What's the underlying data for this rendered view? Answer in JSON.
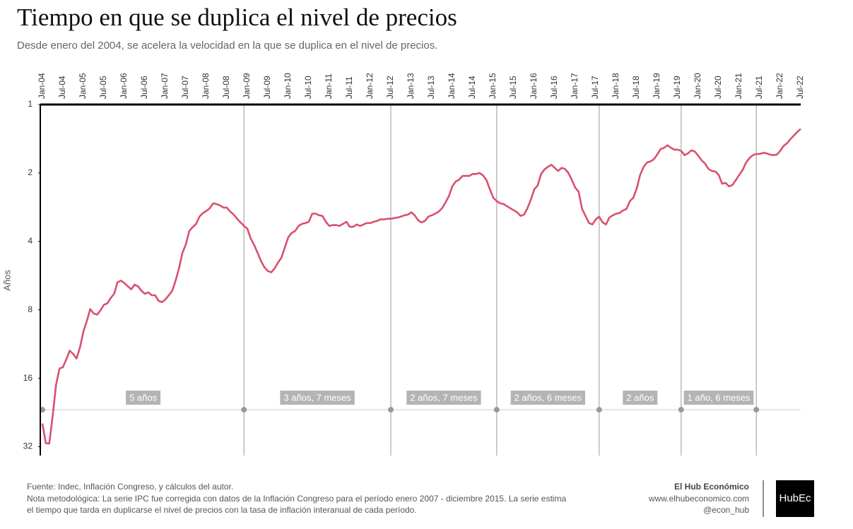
{
  "chart_data": {
    "type": "line",
    "title": "Tiempo en que se duplica el nivel de precios",
    "subtitle": "Desde enero del 2004, se acelera la velocidad en la que se duplica en el nivel de precios.",
    "y_label": "Años",
    "color": "#d9506f",
    "log_scale": true,
    "y_reversed": true,
    "xlim": [
      2004,
      2022.5
    ],
    "ylim": [
      1,
      35
    ],
    "yticks": [
      1,
      2,
      4,
      8,
      16,
      32
    ],
    "xticks": [
      {
        "value": 2004,
        "label": "Jan-04"
      },
      {
        "value": 2004.5,
        "label": "Jul-04"
      },
      {
        "value": 2005,
        "label": "Jan-05"
      },
      {
        "value": 2005.5,
        "label": "Jul-05"
      },
      {
        "value": 2006,
        "label": "Jan-06"
      },
      {
        "value": 2006.5,
        "label": "Jul-06"
      },
      {
        "value": 2007,
        "label": "Jan-07"
      },
      {
        "value": 2007.5,
        "label": "Jul-07"
      },
      {
        "value": 2008,
        "label": "Jan-08"
      },
      {
        "value": 2008.5,
        "label": "Jul-08"
      },
      {
        "value": 2009,
        "label": "Jan-09"
      },
      {
        "value": 2009.5,
        "label": "Jul-09"
      },
      {
        "value": 2010,
        "label": "Jan-10"
      },
      {
        "value": 2010.5,
        "label": "Jul-10"
      },
      {
        "value": 2011,
        "label": "Jan-11"
      },
      {
        "value": 2011.5,
        "label": "Jul-11"
      },
      {
        "value": 2012,
        "label": "Jan-12"
      },
      {
        "value": 2012.5,
        "label": "Jul-12"
      },
      {
        "value": 2013,
        "label": "Jan-13"
      },
      {
        "value": 2013.5,
        "label": "Jul-13"
      },
      {
        "value": 2014,
        "label": "Jan-14"
      },
      {
        "value": 2014.5,
        "label": "Jul-14"
      },
      {
        "value": 2015,
        "label": "Jan-15"
      },
      {
        "value": 2015.5,
        "label": "Jul-15"
      },
      {
        "value": 2016,
        "label": "Jan-16"
      },
      {
        "value": 2016.5,
        "label": "Jul-16"
      },
      {
        "value": 2017,
        "label": "Jan-17"
      },
      {
        "value": 2017.5,
        "label": "Jul-17"
      },
      {
        "value": 2018,
        "label": "Jan-18"
      },
      {
        "value": 2018.5,
        "label": "Jul-18"
      },
      {
        "value": 2019,
        "label": "Jan-19"
      },
      {
        "value": 2019.5,
        "label": "Jul-19"
      },
      {
        "value": 2020,
        "label": "Jan-20"
      },
      {
        "value": 2020.5,
        "label": "Jul-20"
      },
      {
        "value": 2021,
        "label": "Jan-21"
      },
      {
        "value": 2021.5,
        "label": "Jul-21"
      },
      {
        "value": 2022,
        "label": "Jan-22"
      },
      {
        "value": 2022.5,
        "label": "Jul-22"
      }
    ],
    "x": [
      2004,
      2004.083,
      2004.167,
      2004.25,
      2004.333,
      2004.417,
      2004.5,
      2004.583,
      2004.667,
      2004.75,
      2004.833,
      2004.917,
      2005,
      2005.083,
      2005.167,
      2005.25,
      2005.333,
      2005.417,
      2005.5,
      2005.583,
      2005.667,
      2005.75,
      2005.833,
      2005.917,
      2006,
      2006.083,
      2006.167,
      2006.25,
      2006.333,
      2006.417,
      2006.5,
      2006.583,
      2006.667,
      2006.75,
      2006.833,
      2006.917,
      2007,
      2007.083,
      2007.167,
      2007.25,
      2007.333,
      2007.417,
      2007.5,
      2007.583,
      2007.667,
      2007.75,
      2007.833,
      2007.917,
      2008,
      2008.083,
      2008.167,
      2008.25,
      2008.333,
      2008.417,
      2008.5,
      2008.583,
      2008.667,
      2008.75,
      2008.833,
      2008.917,
      2009,
      2009.083,
      2009.167,
      2009.25,
      2009.333,
      2009.417,
      2009.5,
      2009.583,
      2009.667,
      2009.75,
      2009.833,
      2009.917,
      2010,
      2010.083,
      2010.167,
      2010.25,
      2010.333,
      2010.417,
      2010.5,
      2010.583,
      2010.667,
      2010.75,
      2010.833,
      2010.917,
      2011,
      2011.083,
      2011.167,
      2011.25,
      2011.333,
      2011.417,
      2011.5,
      2011.583,
      2011.667,
      2011.75,
      2011.833,
      2011.917,
      2012,
      2012.083,
      2012.167,
      2012.25,
      2012.333,
      2012.417,
      2012.5,
      2012.583,
      2012.667,
      2012.75,
      2012.833,
      2012.917,
      2013,
      2013.083,
      2013.167,
      2013.25,
      2013.333,
      2013.417,
      2013.5,
      2013.583,
      2013.667,
      2013.75,
      2013.833,
      2013.917,
      2014,
      2014.083,
      2014.167,
      2014.25,
      2014.333,
      2014.417,
      2014.5,
      2014.583,
      2014.667,
      2014.75,
      2014.833,
      2014.917,
      2015,
      2015.083,
      2015.167,
      2015.25,
      2015.333,
      2015.417,
      2015.5,
      2015.583,
      2015.667,
      2015.75,
      2015.833,
      2015.917,
      2016,
      2016.083,
      2016.167,
      2016.25,
      2016.333,
      2016.417,
      2016.5,
      2016.583,
      2016.667,
      2016.75,
      2016.833,
      2016.917,
      2017,
      2017.083,
      2017.167,
      2017.25,
      2017.333,
      2017.417,
      2017.5,
      2017.583,
      2017.667,
      2017.75,
      2017.833,
      2017.917,
      2018,
      2018.083,
      2018.167,
      2018.25,
      2018.333,
      2018.417,
      2018.5,
      2018.583,
      2018.667,
      2018.75,
      2018.833,
      2018.917,
      2019,
      2019.083,
      2019.167,
      2019.25,
      2019.333,
      2019.417,
      2019.5,
      2019.583,
      2019.667,
      2019.75,
      2019.833,
      2019.917,
      2020,
      2020.083,
      2020.167,
      2020.25,
      2020.333,
      2020.417,
      2020.5,
      2020.583,
      2020.667,
      2020.75,
      2020.833,
      2020.917,
      2021,
      2021.083,
      2021.167,
      2021.25,
      2021.333,
      2021.417,
      2021.5,
      2021.583,
      2021.667,
      2021.75,
      2021.833,
      2021.917,
      2022,
      2022.083,
      2022.167,
      2022.25,
      2022.333,
      2022.417,
      2022.5
    ],
    "values": [
      25.3,
      30.9,
      31,
      23.5,
      17.1,
      14.5,
      14.3,
      13.2,
      12.1,
      12.5,
      13.1,
      11.7,
      9.97,
      8.97,
      7.94,
      8.3,
      8.4,
      8.05,
      7.6,
      7.5,
      7.1,
      6.8,
      6.05,
      5.95,
      6.1,
      6.3,
      6.5,
      6.2,
      6.3,
      6.6,
      6.8,
      6.7,
      6.9,
      6.9,
      7.3,
      7.4,
      7.2,
      6.9,
      6.6,
      5.95,
      5.25,
      4.49,
      4.12,
      3.6,
      3.46,
      3.35,
      3.11,
      3.0,
      2.94,
      2.86,
      2.72,
      2.74,
      2.78,
      2.84,
      2.84,
      2.96,
      3.05,
      3.18,
      3.3,
      3.42,
      3.52,
      3.89,
      4.15,
      4.49,
      4.88,
      5.2,
      5.4,
      5.47,
      5.25,
      4.95,
      4.71,
      4.24,
      3.83,
      3.67,
      3.6,
      3.42,
      3.35,
      3.32,
      3.28,
      3.02,
      3.02,
      3.07,
      3.09,
      3.28,
      3.42,
      3.39,
      3.39,
      3.42,
      3.35,
      3.28,
      3.45,
      3.45,
      3.37,
      3.42,
      3.37,
      3.32,
      3.32,
      3.28,
      3.25,
      3.2,
      3.2,
      3.18,
      3.18,
      3.16,
      3.14,
      3.11,
      3.07,
      3.05,
      2.98,
      3.07,
      3.23,
      3.3,
      3.25,
      3.11,
      3.07,
      3.02,
      2.96,
      2.86,
      2.7,
      2.53,
      2.29,
      2.18,
      2.14,
      2.06,
      2.06,
      2.06,
      2.02,
      2.02,
      2.0,
      2.05,
      2.15,
      2.36,
      2.57,
      2.66,
      2.72,
      2.74,
      2.8,
      2.86,
      2.92,
      2.98,
      3.09,
      3.05,
      2.86,
      2.62,
      2.36,
      2.27,
      2.02,
      1.93,
      1.88,
      1.84,
      1.9,
      1.96,
      1.9,
      1.92,
      2.0,
      2.15,
      2.32,
      2.42,
      2.88,
      3.09,
      3.32,
      3.37,
      3.2,
      3.11,
      3.3,
      3.37,
      3.14,
      3.07,
      3.02,
      3.0,
      2.92,
      2.88,
      2.66,
      2.57,
      2.34,
      2.04,
      1.88,
      1.8,
      1.78,
      1.74,
      1.66,
      1.57,
      1.55,
      1.51,
      1.55,
      1.58,
      1.58,
      1.6,
      1.67,
      1.64,
      1.59,
      1.61,
      1.68,
      1.76,
      1.82,
      1.92,
      1.96,
      1.97,
      2.04,
      2.23,
      2.21,
      2.29,
      2.26,
      2.15,
      2.04,
      1.94,
      1.8,
      1.72,
      1.67,
      1.65,
      1.65,
      1.63,
      1.64,
      1.66,
      1.67,
      1.66,
      1.6,
      1.52,
      1.48,
      1.42,
      1.37,
      1.32,
      1.28
    ],
    "periods": {
      "level": 22,
      "bounds": [
        2004,
        2008.917,
        2012.5,
        2015.083,
        2017.583,
        2019.583,
        2021.417
      ],
      "labels": [
        "5 años",
        "3 años, 7 meses",
        "2 años, 7 meses",
        "2 años, 6 meses",
        "2 años",
        "1 año, 6 meses"
      ]
    }
  },
  "footer": {
    "source": "Fuente: Indec, Inflación Congreso, y cálculos del autor.",
    "note_1": "Nota metodológica: La serie IPC fue corregida con datos de la Inflación Congreso para el período enero 2007 - diciembre 2015. La serie estima",
    "note_2": "el tiempo que tarda en duplicarse el nivel de precios con la tasa de inflación interanual de cada período.",
    "brand": "El Hub Económico",
    "website": "www.elhubeconomico.com",
    "handle": "@econ_hub",
    "logo": "HubEc"
  }
}
